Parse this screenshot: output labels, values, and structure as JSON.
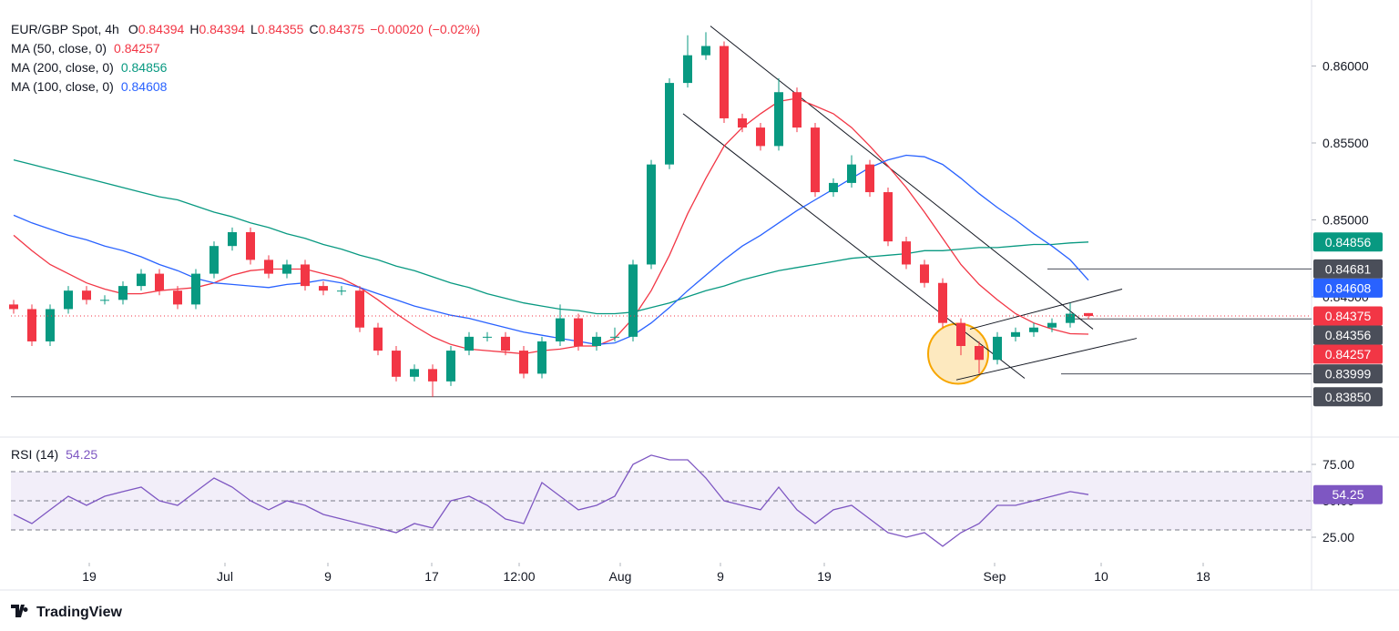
{
  "chart_data": [
    {
      "type": "candlestick",
      "title": "EUR/GBP Spot, 4h",
      "ohlc_labels": [
        "O",
        "H",
        "L",
        "C"
      ],
      "change": {
        "value": -0.0002,
        "label": "−0.00020"
      },
      "change_pct": {
        "value": -0.02,
        "label": "(−0.02%)"
      },
      "up_color": "#089981",
      "down_color": "#f23645",
      "xlim": [
        -0.15,
        71.25
      ],
      "xticks": [
        {
          "value": 4.15,
          "label": "19"
        },
        {
          "value": 11.6,
          "label": "Jul"
        },
        {
          "value": 17.25,
          "label": "9"
        },
        {
          "value": 22.95,
          "label": "17"
        },
        {
          "value": 27.75,
          "label": "12:00"
        },
        {
          "value": 33.3,
          "label": "Aug"
        },
        {
          "value": 38.8,
          "label": "9"
        },
        {
          "value": 44.5,
          "label": "19"
        },
        {
          "value": 53.85,
          "label": "Sep"
        },
        {
          "value": 59.7,
          "label": "10"
        },
        {
          "value": 65.3,
          "label": "18"
        }
      ],
      "ylim": [
        0.836,
        0.8637
      ],
      "yticks": [
        {
          "value": 0.86,
          "label": "0.86000"
        },
        {
          "value": 0.855,
          "label": "0.85500"
        },
        {
          "value": 0.85,
          "label": "0.85000"
        },
        {
          "value": 0.845,
          "label": "0.84500"
        }
      ],
      "ohlc": [
        [
          0.8445,
          0.8448,
          0.8439,
          0.8442
        ],
        [
          0.8442,
          0.8445,
          0.8418,
          0.8421
        ],
        [
          0.8421,
          0.8445,
          0.8418,
          0.8442
        ],
        [
          0.8442,
          0.8457,
          0.8439,
          0.8454
        ],
        [
          0.8454,
          0.8457,
          0.8445,
          0.8448
        ],
        [
          0.8448,
          0.8451,
          0.8445,
          0.8448
        ],
        [
          0.8448,
          0.846,
          0.8445,
          0.8457
        ],
        [
          0.8457,
          0.8468,
          0.8454,
          0.8465
        ],
        [
          0.8465,
          0.8468,
          0.8451,
          0.8454
        ],
        [
          0.8454,
          0.8457,
          0.8442,
          0.8445
        ],
        [
          0.8445,
          0.8468,
          0.8442,
          0.8465
        ],
        [
          0.8465,
          0.8486,
          0.8462,
          0.8483
        ],
        [
          0.8483,
          0.8495,
          0.848,
          0.8492
        ],
        [
          0.8492,
          0.8495,
          0.8471,
          0.8474
        ],
        [
          0.8474,
          0.8477,
          0.8462,
          0.8465
        ],
        [
          0.8465,
          0.8474,
          0.8462,
          0.8471
        ],
        [
          0.8471,
          0.8474,
          0.8454,
          0.8457
        ],
        [
          0.8457,
          0.846,
          0.8451,
          0.8454
        ],
        [
          0.8454,
          0.8457,
          0.8451,
          0.8454
        ],
        [
          0.8454,
          0.8457,
          0.8427,
          0.843
        ],
        [
          0.843,
          0.8433,
          0.8412,
          0.8415
        ],
        [
          0.8415,
          0.8418,
          0.8395,
          0.8398
        ],
        [
          0.8398,
          0.8406,
          0.8395,
          0.8403
        ],
        [
          0.8403,
          0.8406,
          0.8385,
          0.8395
        ],
        [
          0.8395,
          0.8418,
          0.8392,
          0.8415
        ],
        [
          0.8415,
          0.8427,
          0.8412,
          0.8424
        ],
        [
          0.8424,
          0.8427,
          0.8421,
          0.8424
        ],
        [
          0.8424,
          0.8427,
          0.8412,
          0.8415
        ],
        [
          0.8415,
          0.8418,
          0.8397,
          0.84
        ],
        [
          0.84,
          0.8424,
          0.8397,
          0.8421
        ],
        [
          0.8421,
          0.8445,
          0.8418,
          0.8436
        ],
        [
          0.8436,
          0.8439,
          0.8415,
          0.8418
        ],
        [
          0.8418,
          0.8427,
          0.8415,
          0.8424
        ],
        [
          0.8424,
          0.843,
          0.8421,
          0.8424
        ],
        [
          0.8424,
          0.8474,
          0.8421,
          0.8471
        ],
        [
          0.8471,
          0.8539,
          0.8468,
          0.8536
        ],
        [
          0.8536,
          0.8592,
          0.8533,
          0.8589
        ],
        [
          0.8589,
          0.862,
          0.8586,
          0.8607
        ],
        [
          0.8607,
          0.8622,
          0.8604,
          0.8613
        ],
        [
          0.8613,
          0.8616,
          0.8563,
          0.8566
        ],
        [
          0.8566,
          0.8569,
          0.8557,
          0.856
        ],
        [
          0.856,
          0.8563,
          0.8545,
          0.8548
        ],
        [
          0.8548,
          0.8592,
          0.8545,
          0.8583
        ],
        [
          0.8583,
          0.8586,
          0.8557,
          0.856
        ],
        [
          0.856,
          0.8563,
          0.8515,
          0.8518
        ],
        [
          0.8518,
          0.8527,
          0.8515,
          0.8524
        ],
        [
          0.8524,
          0.8542,
          0.8521,
          0.8536
        ],
        [
          0.8536,
          0.8539,
          0.8515,
          0.8518
        ],
        [
          0.8518,
          0.8521,
          0.8483,
          0.8486
        ],
        [
          0.8486,
          0.8489,
          0.8468,
          0.8471
        ],
        [
          0.8471,
          0.8474,
          0.8456,
          0.8459
        ],
        [
          0.8459,
          0.8462,
          0.843,
          0.8433
        ],
        [
          0.8433,
          0.8436,
          0.8412,
          0.8418
        ],
        [
          0.8418,
          0.8421,
          0.84,
          0.8409
        ],
        [
          0.8409,
          0.8427,
          0.8406,
          0.8424
        ],
        [
          0.8424,
          0.843,
          0.8421,
          0.8427
        ],
        [
          0.8427,
          0.8433,
          0.8424,
          0.843
        ],
        [
          0.843,
          0.8436,
          0.8427,
          0.8433
        ],
        [
          0.8433,
          0.8446,
          0.843,
          0.8439
        ],
        [
          0.84394,
          0.84394,
          0.84355,
          0.84375
        ]
      ],
      "series": [
        {
          "name": "MA (50, close, 0)",
          "color": "#f23645",
          "values": [
            0.849,
            0.848,
            0.8471,
            0.8465,
            0.8459,
            0.8455,
            0.8452,
            0.8452,
            0.8454,
            0.8455,
            0.8456,
            0.8459,
            0.8464,
            0.8467,
            0.8468,
            0.8468,
            0.8468,
            0.8465,
            0.8462,
            0.8456,
            0.8448,
            0.8439,
            0.8431,
            0.8424,
            0.8419,
            0.8416,
            0.8415,
            0.8414,
            0.8413,
            0.8415,
            0.8416,
            0.8418,
            0.8418,
            0.8423,
            0.8436,
            0.8454,
            0.8477,
            0.8504,
            0.8527,
            0.8548,
            0.856,
            0.8569,
            0.8577,
            0.8579,
            0.8574,
            0.8569,
            0.856,
            0.8548,
            0.8535,
            0.8521,
            0.8505,
            0.8488,
            0.8471,
            0.8458,
            0.8448,
            0.8439,
            0.8433,
            0.8429,
            0.8426,
            0.84257
          ]
        },
        {
          "name": "MA (200, close, 0)",
          "color": "#089981",
          "values": [
            0.8539,
            0.8536,
            0.8533,
            0.853,
            0.8527,
            0.8524,
            0.8521,
            0.8518,
            0.8515,
            0.8513,
            0.8509,
            0.8505,
            0.8502,
            0.8498,
            0.8495,
            0.8491,
            0.8488,
            0.8484,
            0.8481,
            0.8477,
            0.8474,
            0.847,
            0.8467,
            0.8463,
            0.8459,
            0.8456,
            0.8452,
            0.8449,
            0.8446,
            0.8444,
            0.8442,
            0.8441,
            0.8439,
            0.8439,
            0.844,
            0.8443,
            0.8446,
            0.845,
            0.8454,
            0.8457,
            0.8461,
            0.8464,
            0.8467,
            0.8469,
            0.8471,
            0.8473,
            0.8475,
            0.8476,
            0.8477,
            0.8478,
            0.848,
            0.848,
            0.8481,
            0.8482,
            0.8482,
            0.8483,
            0.8484,
            0.8484,
            0.8485,
            0.84856
          ]
        },
        {
          "name": "MA (100, close, 0)",
          "color": "#2962ff",
          "values": [
            0.8503,
            0.8498,
            0.8494,
            0.849,
            0.8487,
            0.8483,
            0.848,
            0.8476,
            0.8471,
            0.8467,
            0.8462,
            0.8459,
            0.8458,
            0.8457,
            0.8456,
            0.8458,
            0.8459,
            0.8461,
            0.8459,
            0.8456,
            0.8452,
            0.8448,
            0.8444,
            0.8441,
            0.8438,
            0.8436,
            0.8433,
            0.843,
            0.8427,
            0.8425,
            0.8423,
            0.8421,
            0.8419,
            0.842,
            0.8425,
            0.8433,
            0.8443,
            0.8454,
            0.8464,
            0.8474,
            0.8483,
            0.849,
            0.8498,
            0.8506,
            0.8513,
            0.852,
            0.8527,
            0.8534,
            0.8539,
            0.8542,
            0.8541,
            0.8536,
            0.8527,
            0.8517,
            0.8508,
            0.85,
            0.8491,
            0.8483,
            0.8474,
            0.84608
          ]
        }
      ],
      "levels": [
        {
          "value": 0.84681,
          "from": 56.75
        },
        {
          "value": 0.84356,
          "from": 58.25
        },
        {
          "value": 0.83999,
          "from": 57.5
        },
        {
          "value": 0.8385,
          "label": "0.83850",
          "from": -0.15
        }
      ],
      "level_color": "#4a4e59",
      "trendlines": [
        {
          "x": [
            38.25,
            59.25
          ],
          "y": [
            0.8626,
            0.8429
          ]
        },
        {
          "x": [
            36.75,
            55.5
          ],
          "y": [
            0.8569,
            0.8397
          ]
        },
        {
          "x": [
            52.5,
            60.85
          ],
          "y": [
            0.8429,
            0.8455
          ]
        },
        {
          "x": [
            51.75,
            61.65
          ],
          "y": [
            0.8396,
            0.8423
          ]
        }
      ],
      "highlight": {
        "x": 51.85,
        "y": 0.8413,
        "color": "#f7a600"
      }
    },
    {
      "type": "line",
      "title": "RSI (14)",
      "color": "#7e57c2",
      "values": [
        40.6,
        34.4,
        43.8,
        53.1,
        46.9,
        53.1,
        56.3,
        59.4,
        50,
        46.9,
        56.3,
        65.6,
        59.4,
        50,
        43.8,
        50,
        46.9,
        40.6,
        37.5,
        34.4,
        31.3,
        28.1,
        34.4,
        31.3,
        50,
        53.1,
        46.9,
        37.5,
        34.4,
        62.5,
        53.1,
        43.8,
        46.9,
        53.1,
        75,
        81.3,
        78.1,
        78.1,
        65.6,
        50,
        46.9,
        43.8,
        59.4,
        43.8,
        34.4,
        43.8,
        46.9,
        37.5,
        28.1,
        25,
        28.1,
        18.8,
        28.1,
        34.4,
        46.9,
        46.9,
        50,
        53.1,
        56.3,
        54.25
      ],
      "ylim": [
        7.5,
        92.5
      ],
      "yticks": [
        {
          "value": 75,
          "label": "75.00"
        },
        {
          "value": 50,
          "label": "50.00"
        },
        {
          "value": 25,
          "label": "25.00"
        }
      ],
      "bands": [
        70,
        50,
        30
      ]
    }
  ],
  "branding": "TradingView"
}
